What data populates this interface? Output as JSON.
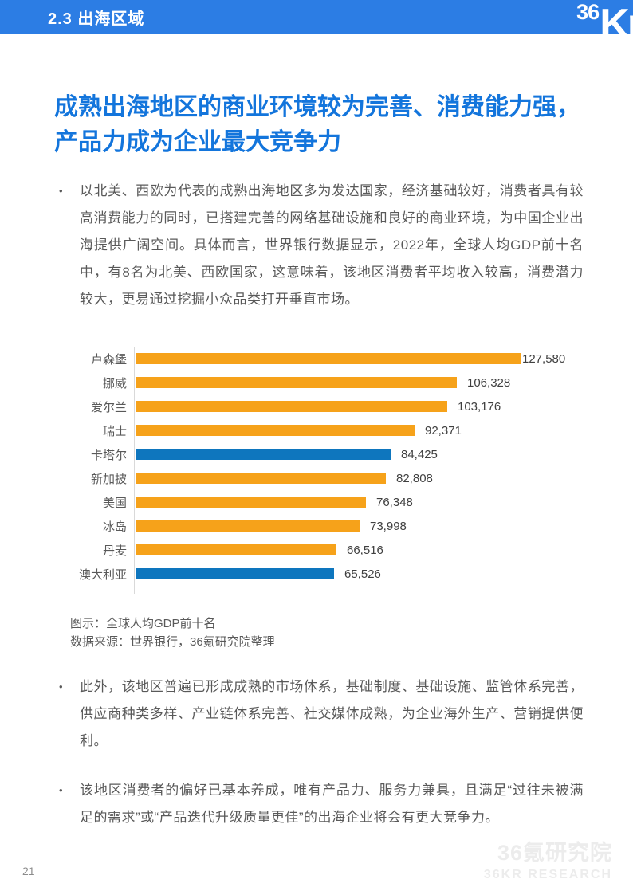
{
  "header": {
    "section": "2.3 出海区域",
    "logo_36": "36",
    "logo_kr": "Kr",
    "bg_color": "#2C7DE4"
  },
  "title": "成熟出海地区的商业环境较为完善、消费能力强，产品力成为企业最大竞争力",
  "bullet_char": "•",
  "bullets": [
    "以北美、西欧为代表的成熟出海地区多为发达国家，经济基础较好，消费者具有较高消费能力的同时，已搭建完善的网络基础设施和良好的商业环境，为中国企业出海提供广阔空间。具体而言，世界银行数据显示，2022年，全球人均GDP前十名中，有8名为北美、西欧国家，这意味着，该地区消费者平均收入较高，消费潜力较大，更易通过挖掘小众品类打开垂直市场。",
    "此外，该地区普遍已形成成熟的市场体系，基础制度、基础设施、监管体系完善，供应商种类多样、产业链体系完善、社交媒体成熟，为企业海外生产、营销提供便利。",
    "该地区消费者的偏好已基本养成，唯有产品力、服务力兼具，且满足“过往未被满足的需求”或“产品迭代升级质量更佳”的出海企业将会有更大竞争力。"
  ],
  "chart_data": {
    "type": "bar",
    "orientation": "horizontal",
    "title": "全球人均GDP前十名",
    "categories": [
      "卢森堡",
      "挪威",
      "爱尔兰",
      "瑞士",
      "卡塔尔",
      "新加披",
      "美国",
      "冰岛",
      "丹麦",
      "澳大利亚"
    ],
    "values": [
      127580,
      106328,
      103176,
      92371,
      84425,
      82808,
      76348,
      73998,
      66516,
      65526
    ],
    "value_labels": [
      "127,580",
      "106,328",
      "103,176",
      "92,371",
      "84,425",
      "82,808",
      "76,348",
      "73,998",
      "66,516",
      "65,526"
    ],
    "bar_colors": [
      "#F6A21A",
      "#F6A21A",
      "#F6A21A",
      "#F6A21A",
      "#0E76BE",
      "#F6A21A",
      "#F6A21A",
      "#F6A21A",
      "#F6A21A",
      "#0E76BE"
    ],
    "xlim": [
      0,
      130000
    ],
    "grid": false,
    "legend": "none",
    "data_labels": "outside-end"
  },
  "chart_caption": {
    "line1": "图示：全球人均GDP前十名",
    "line2": "数据来源：世界银行，36氪研究院整理"
  },
  "footer": {
    "page_number": "21",
    "watermark_line1": "36氪研究院",
    "watermark_line2": "36KR RESEARCH"
  },
  "colors": {
    "header_bg": "#2C7DE4",
    "title_text": "#1375DC",
    "body_text": "#595959",
    "bar_orange": "#F6A21A",
    "bar_blue": "#0E76BE",
    "axis_line": "#D9D9D9",
    "value_text": "#404040",
    "watermark": "#ECECEC"
  }
}
